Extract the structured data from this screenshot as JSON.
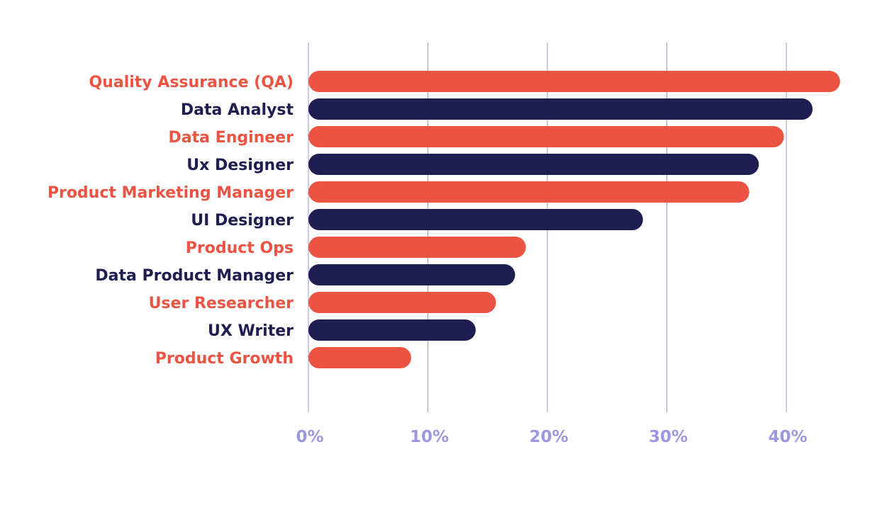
{
  "colors": {
    "accent": "#EB5442",
    "navy": "#1E1E52",
    "grid": "#9A98D6",
    "tick": "#9C98E0"
  },
  "chart_data": {
    "type": "bar",
    "orientation": "horizontal",
    "categories": [
      "Quality Assurance (QA)",
      "Data Analyst",
      "Data Engineer",
      "Ux Designer",
      "Product Marketing Manager",
      "UI Designer",
      "Product Ops",
      "Data Product Manager",
      "User Researcher",
      "UX Writer",
      "Product Growth"
    ],
    "values": [
      44.5,
      42.2,
      39.8,
      37.7,
      36.9,
      28.0,
      18.2,
      17.3,
      15.7,
      14.0,
      8.6
    ],
    "bar_colors": [
      "accent",
      "navy",
      "accent",
      "navy",
      "accent",
      "navy",
      "accent",
      "navy",
      "accent",
      "navy",
      "accent"
    ],
    "xticks": [
      0,
      10,
      20,
      30,
      40
    ],
    "xtick_labels": [
      "0%",
      "10%",
      "20%",
      "30%",
      "40%"
    ],
    "xlim": [
      0,
      48
    ],
    "grid": true,
    "title": "",
    "xlabel": "",
    "ylabel": ""
  }
}
